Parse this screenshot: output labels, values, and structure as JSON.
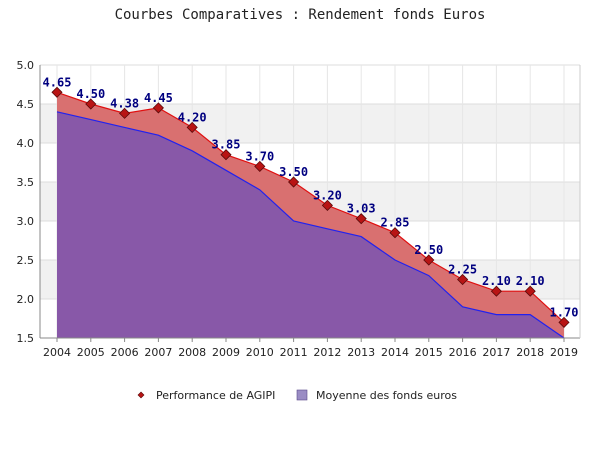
{
  "chart_data": {
    "type": "area",
    "title": "Courbes Comparatives : Rendement fonds Euros",
    "categories": [
      "2004",
      "2005",
      "2006",
      "2007",
      "2008",
      "2009",
      "2010",
      "2011",
      "2012",
      "2013",
      "2014",
      "2015",
      "2016",
      "2017",
      "2018",
      "2019"
    ],
    "series": [
      {
        "name": "Performance de AGIPI",
        "values": [
          4.65,
          4.5,
          4.38,
          4.45,
          4.2,
          3.85,
          3.7,
          3.5,
          3.2,
          3.03,
          2.85,
          2.5,
          2.25,
          2.1,
          2.1,
          1.7
        ],
        "labels": [
          "4.65",
          "4.50",
          "4.38",
          "4.45",
          "4.20",
          "3.85",
          "3.70",
          "3.50",
          "3.20",
          "3.03",
          "2.85",
          "2.50",
          "2.25",
          "2.10",
          "2.10",
          "1.70"
        ],
        "line_color": "#e01010",
        "fill_color": "#d97070",
        "marker_color": "#b81414"
      },
      {
        "name": "Moyenne des fonds euros",
        "values": [
          4.4,
          4.3,
          4.2,
          4.1,
          3.9,
          3.65,
          3.4,
          3.0,
          2.9,
          2.8,
          2.5,
          2.3,
          1.9,
          1.8,
          1.8,
          1.5
        ],
        "line_color": "#2222ee",
        "fill_color": "#8858a8"
      }
    ],
    "y_ticks": [
      "1.5",
      "2.0",
      "2.5",
      "3.0",
      "3.5",
      "4.0",
      "4.5",
      "5.0"
    ],
    "ylim": [
      1.5,
      5.0
    ],
    "xlabel": "",
    "ylabel": "",
    "grid": true,
    "legend_position": "bottom-center"
  }
}
